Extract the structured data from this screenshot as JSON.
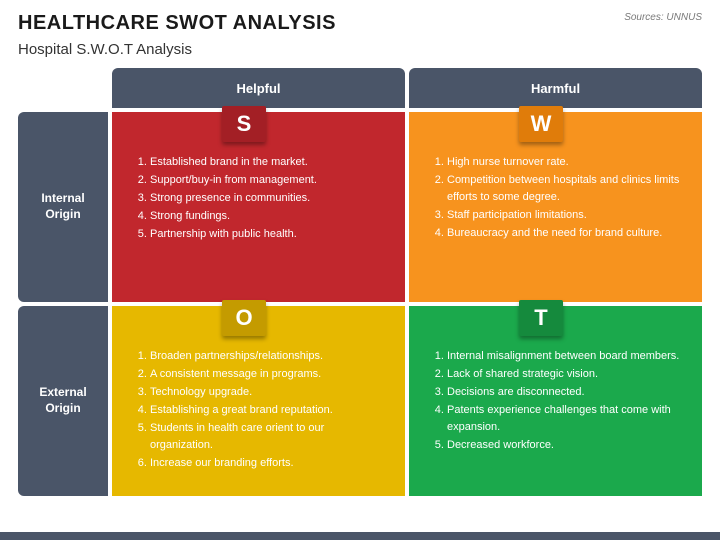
{
  "title": "HEALTHCARE SWOT ANALYSIS",
  "subtitle": "Hospital S.W.O.T Analysis",
  "sources_label": "Sources: UNNUS",
  "header_bg": "#4a5568",
  "header_fg": "#ffffff",
  "columns": [
    "Helpful",
    "Harmful"
  ],
  "rows": [
    "Internal Origin",
    "External Origin"
  ],
  "quadrants": [
    {
      "letter": "S",
      "bg": "#c1272d",
      "tab_bg": "#a31f25",
      "items": [
        "Established brand in the market.",
        "Support/buy-in from management.",
        "Strong presence in communities.",
        "Strong fundings.",
        "Partnership with public health."
      ]
    },
    {
      "letter": "W",
      "bg": "#f7931e",
      "tab_bg": "#e07c0a",
      "items": [
        "High nurse turnover rate.",
        "Competition between hospitals and clinics limits efforts to some degree.",
        "Staff participation limitations.",
        "Bureaucracy and the need for brand culture."
      ]
    },
    {
      "letter": "O",
      "bg": "#e6b800",
      "tab_bg": "#c49b00",
      "items": [
        "Broaden partnerships/relationships.",
        "A consistent message in programs.",
        "Technology upgrade.",
        "Establishing a great brand reputation.",
        "Students in health care orient to our organization.",
        "Increase our branding efforts."
      ]
    },
    {
      "letter": "T",
      "bg": "#1ba94c",
      "tab_bg": "#158a3d",
      "items": [
        "Internal misalignment between board members.",
        "Lack of shared strategic vision.",
        "Decisions are disconnected.",
        "Patents experience challenges that come with expansion.",
        "Decreased workforce."
      ]
    }
  ]
}
